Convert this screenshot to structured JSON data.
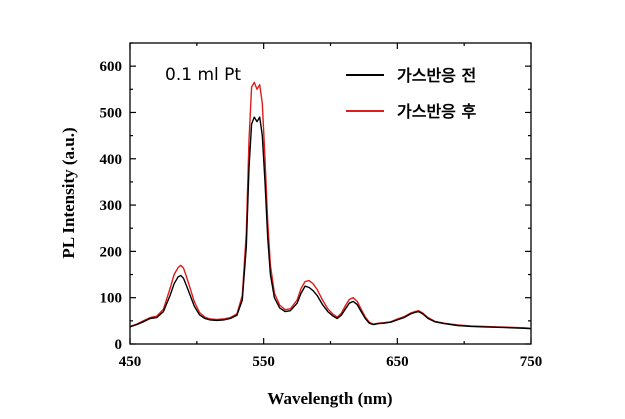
{
  "chart_data": {
    "type": "line",
    "xlabel": "Wavelength (nm)",
    "ylabel": "PL Intensity (a.u.)",
    "xlim": [
      450,
      750
    ],
    "ylim": [
      0,
      650
    ],
    "xticks": [
      "450",
      "550",
      "650",
      "750"
    ],
    "yticks": [
      "0",
      "100",
      "200",
      "300",
      "400",
      "500",
      "600"
    ],
    "annotation": "0.1 ml Pt",
    "legend_placement": "top-right",
    "grid": false,
    "series": [
      {
        "name": "가스반응 전",
        "color": "#000000",
        "x": [
          450,
          455,
          460,
          465,
          470,
          475,
          480,
          483,
          486,
          488,
          490,
          492,
          495,
          498,
          502,
          506,
          510,
          515,
          520,
          525,
          530,
          534,
          537,
          539,
          541,
          543,
          545,
          547,
          549,
          551,
          553,
          555,
          558,
          562,
          566,
          570,
          575,
          578,
          581,
          584,
          587,
          590,
          594,
          598,
          602,
          605,
          608,
          611,
          614,
          617,
          620,
          623,
          626,
          629,
          632,
          636,
          640,
          645,
          650,
          655,
          660,
          663,
          666,
          669,
          673,
          678,
          685,
          695,
          705,
          715,
          725,
          735,
          745,
          750
        ],
        "y": [
          37,
          42,
          48,
          55,
          57,
          70,
          105,
          130,
          145,
          148,
          142,
          128,
          105,
          82,
          63,
          55,
          52,
          51,
          52,
          55,
          62,
          95,
          210,
          380,
          475,
          490,
          480,
          490,
          450,
          350,
          230,
          150,
          100,
          78,
          70,
          72,
          88,
          110,
          125,
          122,
          115,
          105,
          85,
          70,
          60,
          55,
          62,
          75,
          88,
          92,
          85,
          70,
          55,
          45,
          42,
          44,
          45,
          47,
          52,
          57,
          65,
          68,
          70,
          65,
          55,
          48,
          44,
          40,
          38,
          37,
          36,
          35,
          34,
          33
        ]
      },
      {
        "name": "가스반응 후",
        "color": "#e01b1b",
        "x": [
          450,
          455,
          460,
          465,
          470,
          475,
          480,
          483,
          486,
          488,
          490,
          492,
          495,
          498,
          502,
          506,
          510,
          515,
          520,
          525,
          530,
          534,
          537,
          539,
          541,
          543,
          545,
          547,
          549,
          551,
          553,
          555,
          558,
          562,
          566,
          570,
          575,
          578,
          581,
          584,
          587,
          590,
          594,
          598,
          602,
          605,
          608,
          611,
          614,
          617,
          620,
          623,
          626,
          629,
          632,
          636,
          640,
          645,
          650,
          655,
          660,
          663,
          666,
          669,
          673,
          678,
          685,
          695,
          705,
          715,
          725,
          735,
          745,
          750
        ],
        "y": [
          38,
          43,
          50,
          57,
          60,
          75,
          120,
          150,
          165,
          170,
          164,
          148,
          120,
          92,
          68,
          58,
          54,
          53,
          54,
          57,
          65,
          105,
          240,
          440,
          555,
          565,
          550,
          560,
          520,
          400,
          265,
          170,
          110,
          84,
          74,
          76,
          95,
          120,
          135,
          137,
          130,
          118,
          95,
          76,
          64,
          58,
          66,
          82,
          96,
          100,
          92,
          75,
          58,
          47,
          43,
          45,
          46,
          48,
          54,
          59,
          67,
          70,
          72,
          67,
          57,
          49,
          45,
          41,
          39,
          38,
          37,
          36,
          35,
          34
        ]
      }
    ]
  }
}
